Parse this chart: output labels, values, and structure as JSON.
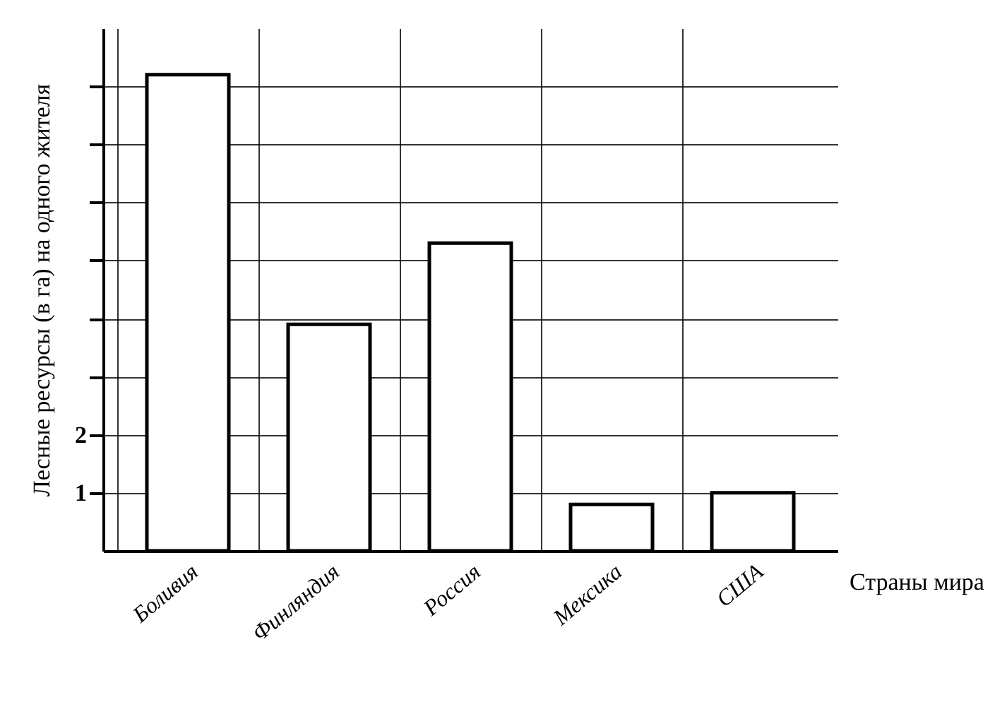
{
  "chart_data": {
    "type": "bar",
    "ylabel": "Лесные ресурсы (в га) на одного жителя",
    "xlabel": "Страны мира",
    "categories": [
      "Боливия",
      "Финляндия",
      "Россия",
      "Мексика",
      "США"
    ],
    "values": [
      8.2,
      3.9,
      5.3,
      0.8,
      1.0
    ],
    "color": "#ffffff",
    "ylim": [
      0,
      9
    ],
    "yticks": [
      1,
      2,
      {
        "value": 3,
        "label": null
      },
      {
        "value": 4,
        "label": null
      },
      {
        "value": 5,
        "label": null
      },
      {
        "value": 6,
        "label": null
      },
      {
        "value": 7,
        "label": null
      },
      {
        "value": 8,
        "label": null
      }
    ],
    "grid": true
  }
}
